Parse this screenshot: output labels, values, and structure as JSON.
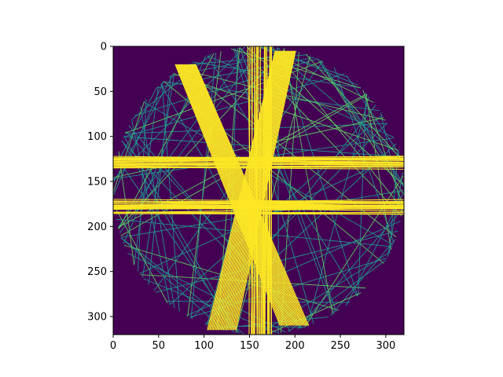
{
  "chart_data": {
    "type": "heatmap",
    "title": "",
    "xlabel": "",
    "ylabel": "",
    "xlim": [
      0,
      320
    ],
    "ylim": [
      320,
      0
    ],
    "xticks": [
      "0",
      "50",
      "100",
      "150",
      "200",
      "250",
      "300"
    ],
    "yticks": [
      "0",
      "50",
      "100",
      "150",
      "200",
      "250",
      "300"
    ],
    "colormap": "viridis",
    "colors": {
      "background": "#440154",
      "line_low": "#21918c",
      "line_mid": "#5ec962",
      "line_high": "#fde725"
    },
    "image_description_data": {
      "grid_size": [
        320,
        320
      ],
      "disk_center": [
        160,
        160
      ],
      "disk_radius": 160,
      "dense_bundles": [
        {
          "name": "vertical-bundle",
          "x_range": [
            150,
            175
          ],
          "y_range": [
            0,
            320
          ]
        },
        {
          "name": "upper-horizontal-bundle",
          "y_range": [
            122,
            135
          ],
          "x_range": [
            0,
            320
          ]
        },
        {
          "name": "lower-horizontal-bundle",
          "y_range": [
            172,
            185
          ],
          "x_range": [
            0,
            320
          ]
        },
        {
          "name": "diagonal-bundle-left",
          "from": [
            80,
            20
          ],
          "to": [
            200,
            310
          ]
        },
        {
          "name": "diagonal-bundle-right",
          "from": [
            190,
            5
          ],
          "to": [
            120,
            315
          ]
        }
      ]
    }
  }
}
